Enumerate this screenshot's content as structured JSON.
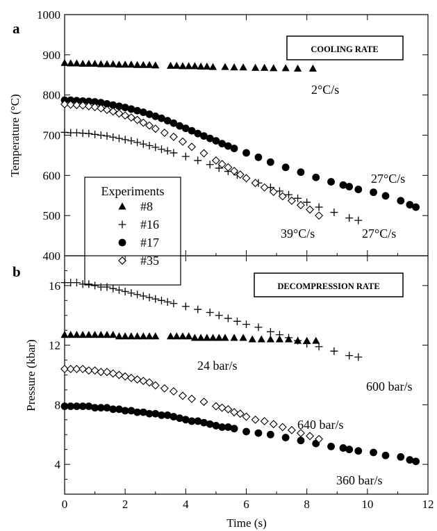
{
  "chart_data": [
    {
      "type": "scatter",
      "panel_label": "a",
      "ylabel": "Temperature (°C)",
      "xlabel": "",
      "xlim": [
        0,
        12
      ],
      "ylim": [
        400,
        1000
      ],
      "xticks": [
        0,
        2,
        4,
        6,
        8,
        10,
        12
      ],
      "yticks": [
        400,
        500,
        600,
        700,
        800,
        900,
        1000
      ],
      "box_label": "COOLING RATE",
      "legend": {
        "title": "Experiments",
        "entries": [
          "#8",
          "#16",
          "#17",
          "#35"
        ]
      },
      "series": [
        {
          "name": "#8",
          "marker": "triangle",
          "x": [
            0.0,
            0.2,
            0.4,
            0.6,
            0.8,
            1.0,
            1.2,
            1.4,
            1.6,
            1.8,
            2.0,
            2.2,
            2.4,
            2.6,
            2.8,
            3.0,
            3.5,
            3.7,
            3.9,
            4.1,
            4.3,
            4.5,
            4.7,
            4.9,
            5.3,
            5.6,
            5.9,
            6.3,
            6.6,
            6.9,
            7.3,
            7.7,
            8.2
          ],
          "y": [
            880,
            879,
            879,
            878,
            878,
            878,
            877,
            877,
            877,
            876,
            876,
            876,
            875,
            875,
            875,
            874,
            873,
            873,
            872,
            872,
            872,
            871,
            871,
            870,
            870,
            869,
            869,
            868,
            868,
            867,
            867,
            866,
            866
          ]
        },
        {
          "name": "#16",
          "marker": "plus",
          "x": [
            0.0,
            0.2,
            0.4,
            0.6,
            0.8,
            1.0,
            1.2,
            1.4,
            1.6,
            1.8,
            2.0,
            2.2,
            2.4,
            2.6,
            2.8,
            3.0,
            3.2,
            3.4,
            3.6,
            4.0,
            4.4,
            4.8,
            5.1,
            5.4,
            5.7,
            6.0,
            6.4,
            6.8,
            7.1,
            7.4,
            7.7,
            8.0,
            8.4,
            8.9,
            9.4,
            9.7
          ],
          "y": [
            707,
            706,
            706,
            705,
            704,
            702,
            700,
            698,
            695,
            692,
            689,
            686,
            682,
            678,
            674,
            670,
            665,
            661,
            656,
            647,
            637,
            627,
            618,
            610,
            601,
            592,
            581,
            570,
            561,
            552,
            543,
            533,
            521,
            508,
            494,
            488
          ]
        },
        {
          "name": "#17",
          "marker": "circle",
          "x": [
            0.0,
            0.2,
            0.4,
            0.6,
            0.8,
            1.0,
            1.2,
            1.4,
            1.6,
            1.8,
            2.0,
            2.2,
            2.4,
            2.6,
            2.8,
            3.0,
            3.2,
            3.4,
            3.6,
            3.8,
            4.0,
            4.2,
            4.4,
            4.6,
            4.8,
            5.0,
            5.2,
            5.4,
            5.6,
            6.0,
            6.4,
            6.8,
            7.3,
            7.8,
            8.3,
            8.8,
            9.2,
            9.4,
            9.7,
            10.2,
            10.6,
            11.1,
            11.4,
            11.6
          ],
          "y": [
            787,
            787,
            786,
            785,
            784,
            783,
            781,
            778,
            775,
            772,
            769,
            765,
            761,
            757,
            752,
            747,
            742,
            736,
            730,
            723,
            717,
            711,
            704,
            698,
            692,
            686,
            679,
            673,
            667,
            656,
            645,
            633,
            620,
            608,
            595,
            584,
            576,
            572,
            565,
            558,
            549,
            537,
            527,
            521
          ]
        },
        {
          "name": "#35",
          "marker": "diamond",
          "x": [
            0.0,
            0.2,
            0.4,
            0.6,
            0.8,
            1.0,
            1.2,
            1.4,
            1.6,
            1.8,
            2.0,
            2.2,
            2.4,
            2.6,
            2.8,
            3.0,
            3.3,
            3.6,
            3.9,
            4.2,
            4.6,
            5.0,
            5.2,
            5.4,
            5.6,
            5.8,
            6.0,
            6.3,
            6.6,
            6.9,
            7.2,
            7.5,
            7.8,
            8.1,
            8.4
          ],
          "y": [
            777,
            776,
            775,
            774,
            772,
            770,
            767,
            763,
            759,
            754,
            749,
            744,
            738,
            731,
            724,
            716,
            706,
            696,
            684,
            671,
            655,
            637,
            628,
            620,
            611,
            602,
            593,
            581,
            570,
            559,
            548,
            537,
            526,
            515,
            500
          ]
        }
      ],
      "annotations": [
        "2°C/s",
        "27°C/s",
        "39°C/s",
        "27°C/s"
      ]
    },
    {
      "type": "scatter",
      "panel_label": "b",
      "ylabel": "Pressure (kbar)",
      "xlabel": "Time (s)",
      "xlim": [
        0,
        12
      ],
      "ylim": [
        2,
        18
      ],
      "xticks": [
        0,
        2,
        4,
        6,
        8,
        10,
        12
      ],
      "yticks": [
        4,
        8,
        12,
        16
      ],
      "box_label": "DECOMPRESSION RATE",
      "series": [
        {
          "name": "#8",
          "marker": "triangle",
          "x": [
            0.0,
            0.2,
            0.4,
            0.6,
            0.8,
            1.0,
            1.2,
            1.4,
            1.6,
            1.8,
            2.0,
            2.2,
            2.4,
            2.6,
            2.8,
            3.0,
            3.5,
            3.7,
            3.9,
            4.1,
            4.3,
            4.5,
            4.7,
            4.9,
            5.1,
            5.3,
            5.6,
            5.9,
            6.2,
            6.5,
            6.8,
            7.1,
            7.4,
            7.7,
            8.0,
            8.3
          ],
          "y": [
            12.7,
            12.7,
            12.7,
            12.7,
            12.7,
            12.7,
            12.7,
            12.7,
            12.7,
            12.6,
            12.6,
            12.6,
            12.6,
            12.6,
            12.6,
            12.6,
            12.6,
            12.6,
            12.6,
            12.6,
            12.5,
            12.5,
            12.5,
            12.5,
            12.5,
            12.5,
            12.5,
            12.5,
            12.4,
            12.4,
            12.4,
            12.4,
            12.4,
            12.3,
            12.3,
            12.3
          ]
        },
        {
          "name": "#16",
          "marker": "plus",
          "x": [
            0.0,
            0.2,
            0.4,
            0.6,
            0.8,
            1.0,
            1.2,
            1.4,
            1.6,
            1.8,
            2.0,
            2.2,
            2.4,
            2.6,
            2.8,
            3.0,
            3.2,
            3.4,
            3.6,
            4.0,
            4.4,
            4.8,
            5.1,
            5.4,
            5.7,
            6.0,
            6.4,
            6.8,
            7.1,
            7.4,
            7.7,
            8.0,
            8.4,
            8.9,
            9.4,
            9.7
          ],
          "y": [
            16.2,
            16.2,
            16.2,
            16.1,
            16.1,
            16.0,
            15.9,
            15.9,
            15.8,
            15.7,
            15.6,
            15.5,
            15.4,
            15.3,
            15.2,
            15.1,
            15.0,
            14.9,
            14.8,
            14.6,
            14.4,
            14.2,
            14.0,
            13.8,
            13.6,
            13.4,
            13.2,
            12.9,
            12.7,
            12.5,
            12.3,
            12.1,
            11.9,
            11.6,
            11.3,
            11.2
          ]
        },
        {
          "name": "#17",
          "marker": "circle",
          "x": [
            0.0,
            0.2,
            0.4,
            0.6,
            0.8,
            1.0,
            1.2,
            1.4,
            1.6,
            1.8,
            2.0,
            2.2,
            2.4,
            2.6,
            2.8,
            3.0,
            3.2,
            3.4,
            3.6,
            3.8,
            4.0,
            4.2,
            4.4,
            4.6,
            4.8,
            5.0,
            5.2,
            5.4,
            5.6,
            6.0,
            6.4,
            6.8,
            7.3,
            7.8,
            8.3,
            8.8,
            9.2,
            9.4,
            9.7,
            10.2,
            10.6,
            11.1,
            11.4,
            11.6
          ],
          "y": [
            7.9,
            7.9,
            7.9,
            7.9,
            7.9,
            7.8,
            7.8,
            7.8,
            7.7,
            7.7,
            7.6,
            7.6,
            7.5,
            7.5,
            7.4,
            7.4,
            7.3,
            7.3,
            7.2,
            7.1,
            7.0,
            6.9,
            6.9,
            6.8,
            6.7,
            6.6,
            6.5,
            6.5,
            6.4,
            6.2,
            6.1,
            6.0,
            5.8,
            5.6,
            5.4,
            5.2,
            5.1,
            5.0,
            4.9,
            4.8,
            4.6,
            4.5,
            4.3,
            4.2
          ]
        },
        {
          "name": "#35",
          "marker": "diamond",
          "x": [
            0.0,
            0.2,
            0.4,
            0.6,
            0.8,
            1.0,
            1.2,
            1.4,
            1.6,
            1.8,
            2.0,
            2.2,
            2.4,
            2.6,
            2.8,
            3.0,
            3.3,
            3.6,
            3.9,
            4.2,
            4.6,
            5.0,
            5.2,
            5.4,
            5.6,
            5.8,
            6.0,
            6.3,
            6.6,
            6.9,
            7.2,
            7.5,
            7.8,
            8.1,
            8.4
          ],
          "y": [
            10.4,
            10.4,
            10.4,
            10.4,
            10.3,
            10.3,
            10.2,
            10.2,
            10.1,
            10.0,
            9.9,
            9.8,
            9.7,
            9.6,
            9.5,
            9.3,
            9.1,
            8.9,
            8.6,
            8.4,
            8.2,
            7.9,
            7.8,
            7.7,
            7.5,
            7.4,
            7.2,
            7.0,
            6.9,
            6.7,
            6.5,
            6.3,
            6.1,
            5.9,
            5.7
          ]
        }
      ],
      "annotations": [
        "24 bar/s",
        "600 bar/s",
        "640 bar/s",
        "360 bar/s"
      ]
    }
  ]
}
